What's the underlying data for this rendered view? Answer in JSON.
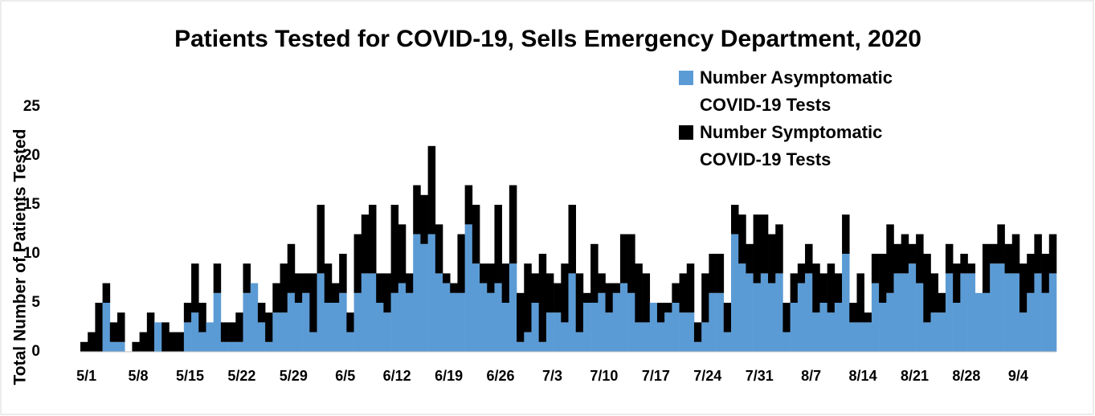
{
  "chart_data": {
    "type": "stacked_bar",
    "title": "Patients Tested for COVID-19, Sells Emergency Department, 2020",
    "y_label": "Total Number of Patients Tested",
    "categories": [
      "5/1",
      null,
      null,
      null,
      null,
      null,
      null,
      "5/8",
      null,
      null,
      null,
      null,
      null,
      null,
      "5/15",
      null,
      null,
      null,
      null,
      null,
      null,
      "5/22",
      null,
      null,
      null,
      null,
      null,
      null,
      "5/29",
      null,
      null,
      null,
      null,
      null,
      null,
      "6/5",
      null,
      null,
      null,
      null,
      null,
      null,
      "6/12",
      null,
      null,
      null,
      null,
      null,
      null,
      "6/19",
      null,
      null,
      null,
      null,
      null,
      null,
      "6/26",
      null,
      null,
      null,
      null,
      null,
      null,
      "7/3",
      null,
      null,
      null,
      null,
      null,
      null,
      "7/10",
      null,
      null,
      null,
      null,
      null,
      null,
      "7/17",
      null,
      null,
      null,
      null,
      null,
      null,
      "7/24",
      null,
      null,
      null,
      null,
      null,
      null,
      "7/31",
      null,
      null,
      null,
      null,
      null,
      null,
      "8/7",
      null,
      null,
      null,
      null,
      null,
      null,
      "8/14",
      null,
      null,
      null,
      null,
      null,
      null,
      "8/21",
      null,
      null,
      null,
      null,
      null,
      null,
      "8/28",
      null,
      null,
      null,
      null,
      null,
      null,
      "9/4",
      null,
      null,
      null,
      null,
      null
    ],
    "series": [
      {
        "name": "Number Asymptomatic COVID-19 Tests",
        "color": "#5b9bd5",
        "values": [
          0,
          0,
          0,
          5,
          1,
          1,
          0,
          0,
          0,
          0,
          3,
          0,
          0,
          0,
          3,
          4,
          2,
          3,
          6,
          1,
          1,
          1,
          6,
          7,
          3,
          1,
          4,
          4,
          6,
          5,
          6,
          2,
          8,
          5,
          5,
          6,
          2,
          6,
          8,
          8,
          5,
          4,
          6,
          7,
          6,
          12,
          11,
          12,
          8,
          7,
          6,
          6,
          13,
          9,
          7,
          6,
          7,
          5,
          9,
          1,
          2,
          5,
          1,
          4,
          4,
          3,
          8,
          2,
          5,
          5,
          6,
          4,
          6,
          7,
          6,
          3,
          3,
          5,
          3,
          4,
          5,
          4,
          4,
          1,
          3,
          6,
          6,
          2,
          12,
          9,
          8,
          7,
          8,
          7,
          8,
          2,
          5,
          7,
          8,
          4,
          5,
          4,
          5,
          10,
          3,
          3,
          3,
          7,
          5,
          6,
          8,
          8,
          9,
          7,
          3,
          4,
          4,
          8,
          5,
          8,
          8,
          6,
          6,
          9,
          9,
          8,
          8,
          4,
          6,
          8,
          6,
          8
        ]
      },
      {
        "name": "Number Symptomatic COVID-19 Tests",
        "color": "#000000",
        "values": [
          1,
          2,
          5,
          2,
          2,
          3,
          0,
          1,
          2,
          4,
          0,
          3,
          2,
          2,
          2,
          5,
          3,
          0,
          3,
          2,
          2,
          3,
          3,
          0,
          2,
          3,
          3,
          5,
          5,
          3,
          2,
          6,
          7,
          4,
          2,
          4,
          2,
          6,
          6,
          7,
          3,
          4,
          9,
          6,
          2,
          5,
          5,
          9,
          5,
          1,
          1,
          6,
          4,
          6,
          2,
          3,
          8,
          4,
          8,
          5,
          7,
          3,
          9,
          4,
          3,
          6,
          7,
          6,
          1,
          6,
          2,
          3,
          1,
          5,
          6,
          6,
          5,
          0,
          2,
          1,
          2,
          4,
          5,
          2,
          5,
          4,
          4,
          3,
          3,
          5,
          3,
          7,
          6,
          5,
          5,
          3,
          3,
          2,
          3,
          5,
          3,
          5,
          3,
          4,
          2,
          5,
          1,
          3,
          5,
          7,
          3,
          4,
          2,
          5,
          7,
          4,
          2,
          3,
          4,
          2,
          1,
          0,
          5,
          2,
          4,
          3,
          4,
          5,
          4,
          4,
          4,
          4
        ]
      }
    ],
    "ylim": [
      0,
      25
    ],
    "yticks": [
      0,
      5,
      10,
      15,
      20,
      25
    ],
    "grid": false
  }
}
